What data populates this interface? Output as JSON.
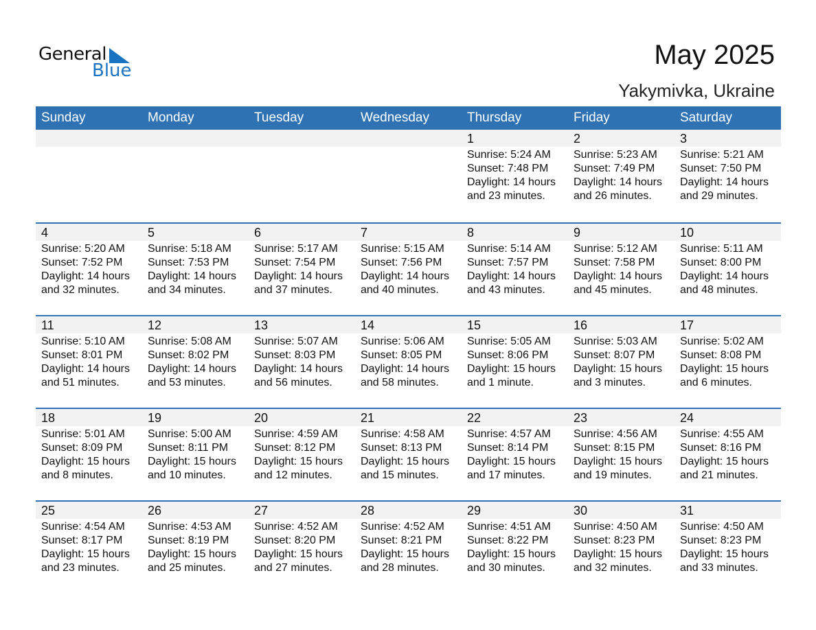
{
  "logo": {
    "general": "General",
    "blue": "Blue"
  },
  "header": {
    "title": "May 2025",
    "location": "Yakymivka, Ukraine"
  },
  "weekdays": [
    "Sunday",
    "Monday",
    "Tuesday",
    "Wednesday",
    "Thursday",
    "Friday",
    "Saturday"
  ],
  "weeks": [
    [
      null,
      null,
      null,
      null,
      {
        "day": "1",
        "sunrise": "Sunrise: 5:24 AM",
        "sunset": "Sunset: 7:48 PM",
        "daylight": "Daylight: 14 hours",
        "minutes": "and 23 minutes."
      },
      {
        "day": "2",
        "sunrise": "Sunrise: 5:23 AM",
        "sunset": "Sunset: 7:49 PM",
        "daylight": "Daylight: 14 hours",
        "minutes": "and 26 minutes."
      },
      {
        "day": "3",
        "sunrise": "Sunrise: 5:21 AM",
        "sunset": "Sunset: 7:50 PM",
        "daylight": "Daylight: 14 hours",
        "minutes": "and 29 minutes."
      }
    ],
    [
      {
        "day": "4",
        "sunrise": "Sunrise: 5:20 AM",
        "sunset": "Sunset: 7:52 PM",
        "daylight": "Daylight: 14 hours",
        "minutes": "and 32 minutes."
      },
      {
        "day": "5",
        "sunrise": "Sunrise: 5:18 AM",
        "sunset": "Sunset: 7:53 PM",
        "daylight": "Daylight: 14 hours",
        "minutes": "and 34 minutes."
      },
      {
        "day": "6",
        "sunrise": "Sunrise: 5:17 AM",
        "sunset": "Sunset: 7:54 PM",
        "daylight": "Daylight: 14 hours",
        "minutes": "and 37 minutes."
      },
      {
        "day": "7",
        "sunrise": "Sunrise: 5:15 AM",
        "sunset": "Sunset: 7:56 PM",
        "daylight": "Daylight: 14 hours",
        "minutes": "and 40 minutes."
      },
      {
        "day": "8",
        "sunrise": "Sunrise: 5:14 AM",
        "sunset": "Sunset: 7:57 PM",
        "daylight": "Daylight: 14 hours",
        "minutes": "and 43 minutes."
      },
      {
        "day": "9",
        "sunrise": "Sunrise: 5:12 AM",
        "sunset": "Sunset: 7:58 PM",
        "daylight": "Daylight: 14 hours",
        "minutes": "and 45 minutes."
      },
      {
        "day": "10",
        "sunrise": "Sunrise: 5:11 AM",
        "sunset": "Sunset: 8:00 PM",
        "daylight": "Daylight: 14 hours",
        "minutes": "and 48 minutes."
      }
    ],
    [
      {
        "day": "11",
        "sunrise": "Sunrise: 5:10 AM",
        "sunset": "Sunset: 8:01 PM",
        "daylight": "Daylight: 14 hours",
        "minutes": "and 51 minutes."
      },
      {
        "day": "12",
        "sunrise": "Sunrise: 5:08 AM",
        "sunset": "Sunset: 8:02 PM",
        "daylight": "Daylight: 14 hours",
        "minutes": "and 53 minutes."
      },
      {
        "day": "13",
        "sunrise": "Sunrise: 5:07 AM",
        "sunset": "Sunset: 8:03 PM",
        "daylight": "Daylight: 14 hours",
        "minutes": "and 56 minutes."
      },
      {
        "day": "14",
        "sunrise": "Sunrise: 5:06 AM",
        "sunset": "Sunset: 8:05 PM",
        "daylight": "Daylight: 14 hours",
        "minutes": "and 58 minutes."
      },
      {
        "day": "15",
        "sunrise": "Sunrise: 5:05 AM",
        "sunset": "Sunset: 8:06 PM",
        "daylight": "Daylight: 15 hours",
        "minutes": "and 1 minute."
      },
      {
        "day": "16",
        "sunrise": "Sunrise: 5:03 AM",
        "sunset": "Sunset: 8:07 PM",
        "daylight": "Daylight: 15 hours",
        "minutes": "and 3 minutes."
      },
      {
        "day": "17",
        "sunrise": "Sunrise: 5:02 AM",
        "sunset": "Sunset: 8:08 PM",
        "daylight": "Daylight: 15 hours",
        "minutes": "and 6 minutes."
      }
    ],
    [
      {
        "day": "18",
        "sunrise": "Sunrise: 5:01 AM",
        "sunset": "Sunset: 8:09 PM",
        "daylight": "Daylight: 15 hours",
        "minutes": "and 8 minutes."
      },
      {
        "day": "19",
        "sunrise": "Sunrise: 5:00 AM",
        "sunset": "Sunset: 8:11 PM",
        "daylight": "Daylight: 15 hours",
        "minutes": "and 10 minutes."
      },
      {
        "day": "20",
        "sunrise": "Sunrise: 4:59 AM",
        "sunset": "Sunset: 8:12 PM",
        "daylight": "Daylight: 15 hours",
        "minutes": "and 12 minutes."
      },
      {
        "day": "21",
        "sunrise": "Sunrise: 4:58 AM",
        "sunset": "Sunset: 8:13 PM",
        "daylight": "Daylight: 15 hours",
        "minutes": "and 15 minutes."
      },
      {
        "day": "22",
        "sunrise": "Sunrise: 4:57 AM",
        "sunset": "Sunset: 8:14 PM",
        "daylight": "Daylight: 15 hours",
        "minutes": "and 17 minutes."
      },
      {
        "day": "23",
        "sunrise": "Sunrise: 4:56 AM",
        "sunset": "Sunset: 8:15 PM",
        "daylight": "Daylight: 15 hours",
        "minutes": "and 19 minutes."
      },
      {
        "day": "24",
        "sunrise": "Sunrise: 4:55 AM",
        "sunset": "Sunset: 8:16 PM",
        "daylight": "Daylight: 15 hours",
        "minutes": "and 21 minutes."
      }
    ],
    [
      {
        "day": "25",
        "sunrise": "Sunrise: 4:54 AM",
        "sunset": "Sunset: 8:17 PM",
        "daylight": "Daylight: 15 hours",
        "minutes": "and 23 minutes."
      },
      {
        "day": "26",
        "sunrise": "Sunrise: 4:53 AM",
        "sunset": "Sunset: 8:19 PM",
        "daylight": "Daylight: 15 hours",
        "minutes": "and 25 minutes."
      },
      {
        "day": "27",
        "sunrise": "Sunrise: 4:52 AM",
        "sunset": "Sunset: 8:20 PM",
        "daylight": "Daylight: 15 hours",
        "minutes": "and 27 minutes."
      },
      {
        "day": "28",
        "sunrise": "Sunrise: 4:52 AM",
        "sunset": "Sunset: 8:21 PM",
        "daylight": "Daylight: 15 hours",
        "minutes": "and 28 minutes."
      },
      {
        "day": "29",
        "sunrise": "Sunrise: 4:51 AM",
        "sunset": "Sunset: 8:22 PM",
        "daylight": "Daylight: 15 hours",
        "minutes": "and 30 minutes."
      },
      {
        "day": "30",
        "sunrise": "Sunrise: 4:50 AM",
        "sunset": "Sunset: 8:23 PM",
        "daylight": "Daylight: 15 hours",
        "minutes": "and 32 minutes."
      },
      {
        "day": "31",
        "sunrise": "Sunrise: 4:50 AM",
        "sunset": "Sunset: 8:23 PM",
        "daylight": "Daylight: 15 hours",
        "minutes": "and 33 minutes."
      }
    ]
  ],
  "colors": {
    "header_bg": "#2e72b4",
    "date_band": "#f2f2f2",
    "logo_blue": "#1a73c0"
  }
}
